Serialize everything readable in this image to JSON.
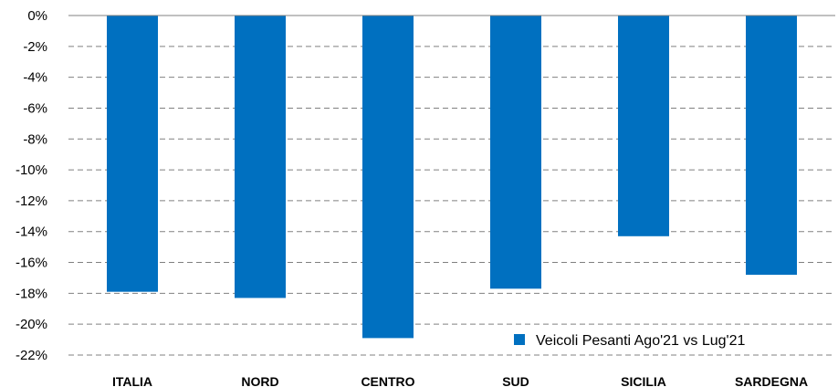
{
  "chart_data": {
    "type": "bar",
    "categories": [
      "ITALIA",
      "NORD",
      "CENTRO",
      "SUD",
      "SICILIA",
      "SARDEGNA"
    ],
    "series": [
      {
        "name": "Veicoli Pesanti Ago'21 vs Lug'21",
        "values": [
          -17.9,
          -18.3,
          -20.9,
          -17.7,
          -14.3,
          -16.8
        ]
      }
    ],
    "ylim": [
      -22,
      0
    ],
    "yticks": [
      0,
      -2,
      -4,
      -6,
      -8,
      -10,
      -12,
      -14,
      -16,
      -18,
      -20,
      -22
    ],
    "ytick_labels": [
      "0%",
      "-2%",
      "-4%",
      "-6%",
      "-8%",
      "-10%",
      "-12%",
      "-14%",
      "-16%",
      "-18%",
      "-20%",
      "-22%"
    ],
    "colors": {
      "bar": "#0070C0",
      "grid": "#808080",
      "axis": "#808080"
    },
    "grid": true,
    "legend_position": "bottom-right"
  }
}
